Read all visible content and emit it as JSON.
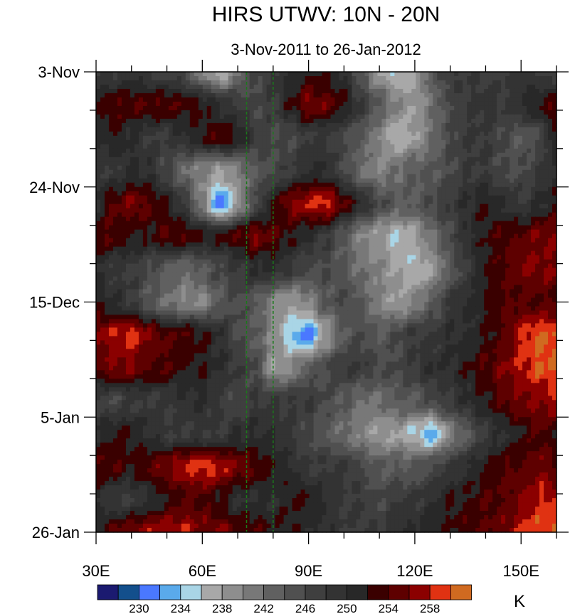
{
  "chart_data": {
    "type": "heatmap",
    "title": "HIRS UTWV: 10N - 20N",
    "subtitle": "3-Nov-2011 to 26-Jan-2012",
    "x": [
      30,
      35,
      40,
      45,
      50,
      55,
      60,
      65,
      70,
      75,
      80,
      85,
      90,
      95,
      100,
      105,
      110,
      115,
      120,
      125,
      130,
      135,
      140,
      145,
      150,
      155,
      160
    ],
    "xlim": [
      30,
      160
    ],
    "x_ticks": [
      30,
      60,
      90,
      120,
      150
    ],
    "x_tick_labels": [
      "30E",
      "60E",
      "90E",
      "120E",
      "150E"
    ],
    "y_days": [
      0,
      6,
      12,
      18,
      24,
      30,
      36,
      42,
      48,
      54,
      60,
      66,
      72,
      78,
      84
    ],
    "ylim_days": [
      0,
      84
    ],
    "y_ticks_days": [
      0,
      21,
      42,
      63,
      84
    ],
    "y_tick_labels": [
      "3-Nov",
      "24-Nov",
      "15-Dec",
      "5-Jan",
      "26-Jan"
    ],
    "reference_lines_lon": [
      72.5,
      80
    ],
    "reference_line_color": "#1a7a1a",
    "values": [
      [
        248,
        248,
        249,
        248,
        247,
        246,
        240,
        236,
        242,
        246,
        248,
        250,
        252,
        252,
        250,
        244,
        238,
        236,
        238,
        244,
        248,
        248,
        247,
        248,
        249,
        248,
        246
      ],
      [
        252,
        254,
        254,
        254,
        254,
        253,
        252,
        250,
        248,
        246,
        248,
        252,
        256,
        255,
        252,
        248,
        244,
        240,
        238,
        242,
        246,
        248,
        249,
        248,
        250,
        252,
        254
      ],
      [
        250,
        252,
        250,
        248,
        248,
        250,
        252,
        254,
        252,
        248,
        246,
        246,
        248,
        248,
        246,
        244,
        240,
        236,
        238,
        242,
        246,
        248,
        248,
        246,
        244,
        246,
        252
      ],
      [
        249,
        248,
        250,
        250,
        246,
        242,
        240,
        238,
        240,
        244,
        246,
        248,
        250,
        250,
        246,
        242,
        240,
        242,
        244,
        244,
        246,
        248,
        248,
        246,
        246,
        248,
        250
      ],
      [
        250,
        254,
        256,
        254,
        252,
        248,
        240,
        231,
        238,
        246,
        252,
        256,
        258,
        259,
        254,
        250,
        246,
        244,
        244,
        246,
        248,
        250,
        252,
        250,
        248,
        250,
        252
      ],
      [
        254,
        254,
        252,
        252,
        254,
        254,
        252,
        252,
        254,
        256,
        254,
        252,
        250,
        248,
        244,
        240,
        238,
        236,
        238,
        242,
        246,
        250,
        252,
        254,
        254,
        256,
        256
      ],
      [
        250,
        248,
        248,
        246,
        244,
        242,
        244,
        246,
        248,
        250,
        250,
        248,
        246,
        246,
        244,
        242,
        240,
        238,
        236,
        238,
        244,
        248,
        252,
        254,
        256,
        256,
        256
      ],
      [
        252,
        250,
        248,
        244,
        242,
        240,
        240,
        244,
        246,
        244,
        240,
        238,
        240,
        244,
        246,
        244,
        240,
        238,
        240,
        244,
        248,
        250,
        252,
        254,
        254,
        254,
        254
      ],
      [
        256,
        258,
        259,
        256,
        254,
        254,
        252,
        250,
        246,
        244,
        240,
        234,
        231,
        238,
        244,
        246,
        244,
        246,
        248,
        248,
        250,
        250,
        252,
        254,
        258,
        260,
        260
      ],
      [
        254,
        256,
        256,
        254,
        254,
        252,
        252,
        250,
        248,
        246,
        238,
        240,
        244,
        246,
        248,
        248,
        246,
        246,
        248,
        250,
        250,
        252,
        254,
        256,
        258,
        260,
        260
      ],
      [
        248,
        246,
        248,
        248,
        248,
        250,
        250,
        248,
        246,
        248,
        248,
        248,
        248,
        246,
        244,
        242,
        242,
        244,
        244,
        246,
        248,
        250,
        252,
        254,
        256,
        256,
        258
      ],
      [
        250,
        252,
        252,
        250,
        248,
        248,
        248,
        248,
        250,
        250,
        250,
        248,
        246,
        244,
        242,
        240,
        238,
        238,
        236,
        233,
        240,
        244,
        248,
        250,
        252,
        254,
        252
      ],
      [
        254,
        254,
        252,
        254,
        256,
        258,
        259,
        258,
        256,
        254,
        252,
        250,
        248,
        248,
        248,
        246,
        244,
        244,
        244,
        246,
        248,
        250,
        252,
        254,
        254,
        256,
        254
      ],
      [
        250,
        248,
        248,
        250,
        252,
        254,
        254,
        252,
        250,
        250,
        250,
        252,
        252,
        250,
        248,
        248,
        246,
        248,
        248,
        250,
        252,
        252,
        254,
        254,
        256,
        258,
        258
      ],
      [
        252,
        254,
        256,
        257,
        258,
        258,
        256,
        256,
        254,
        254,
        252,
        252,
        250,
        250,
        248,
        248,
        248,
        250,
        250,
        252,
        252,
        254,
        254,
        256,
        258,
        260,
        260
      ]
    ],
    "colorbar": {
      "boundaries": [
        228,
        230,
        232,
        234,
        236,
        238,
        240,
        242,
        244,
        246,
        248,
        250,
        252,
        254,
        256,
        258,
        260
      ],
      "labels": [
        "230",
        "234",
        "238",
        "242",
        "246",
        "250",
        "254",
        "258"
      ],
      "unit": "K",
      "colors": [
        "#1b1a70",
        "#134f8c",
        "#4a78ff",
        "#5aaaeb",
        "#a9d5e6",
        "#a8a8a8",
        "#8e8e8e",
        "#787878",
        "#606060",
        "#505050",
        "#3f3f3f",
        "#333333",
        "#282828",
        "#3a0000",
        "#5e0000",
        "#8b0000",
        "#e03212",
        "#d06a20"
      ]
    }
  }
}
